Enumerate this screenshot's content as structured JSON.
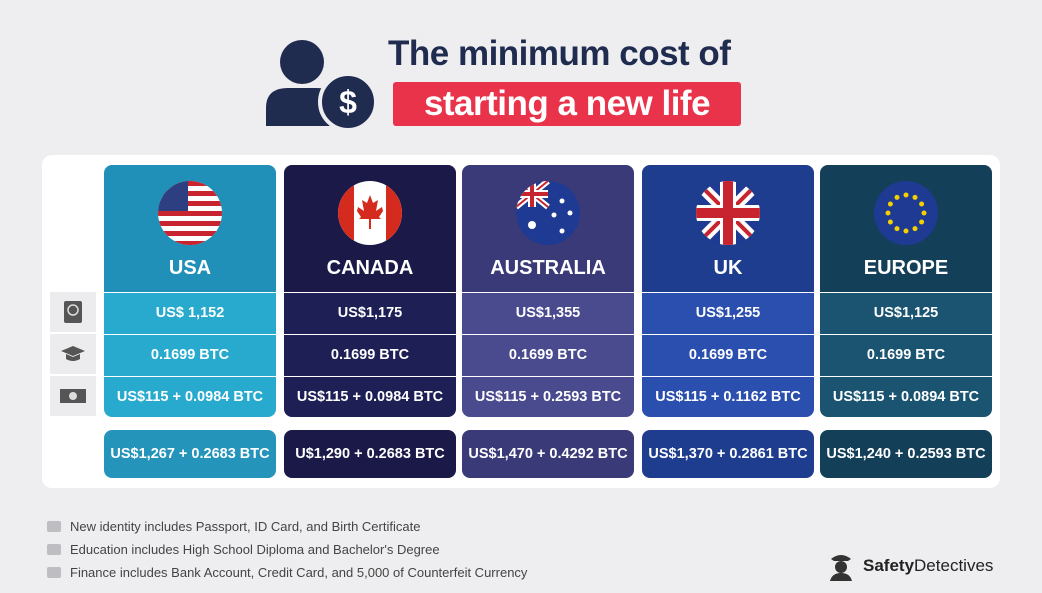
{
  "header": {
    "title_line1": "The minimum cost of",
    "title_line2": "starting a new life"
  },
  "table": {
    "columns": [
      {
        "name": "USA",
        "rows": [
          "US$ 1,152",
          "0.1699 BTC",
          "US$115 + 0.0984 BTC"
        ],
        "total": "US$1,267 + 0.2683 BTC"
      },
      {
        "name": "CANADA",
        "rows": [
          "US$1,175",
          "0.1699 BTC",
          "US$115 + 0.0984 BTC"
        ],
        "total": "U$1,290 + 0.2683 BTC"
      },
      {
        "name": "AUSTRALIA",
        "rows": [
          "US$1,355",
          "0.1699 BTC",
          "US$115 + 0.2593 BTC"
        ],
        "total": "US$1,470 + 0.4292 BTC"
      },
      {
        "name": "UK",
        "rows": [
          "US$1,255",
          "0.1699 BTC",
          "US$115 + 0.1162 BTC"
        ],
        "total": "US$1,370 + 0.2861 BTC"
      },
      {
        "name": "EUROPE",
        "rows": [
          "US$1,125",
          "0.1699 BTC",
          "US$115 + 0.0894 BTC"
        ],
        "total": "US$1,240 + 0.2593 BTC"
      }
    ]
  },
  "notes": [
    "New identity includes Passport, ID Card, and Birth Certificate",
    "Education includes High School Diploma and Bachelor's Degree",
    "Finance includes Bank Account, Credit Card, and 5,000 of Counterfeit Currency"
  ],
  "brand": {
    "part1": "Safety",
    "part2": "Detectives"
  }
}
